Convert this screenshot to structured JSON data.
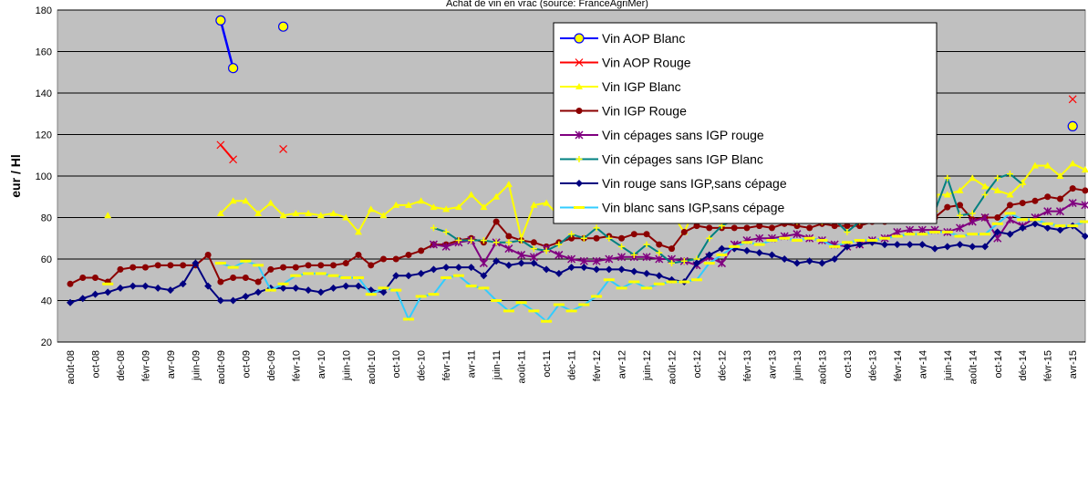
{
  "chart_data": {
    "type": "line",
    "title": "Achat de vin en vrac (source: FranceAgriMer)",
    "y_label": "eur / Hl",
    "categories": [
      "août-08",
      null,
      "oct-08",
      null,
      "déc-08",
      null,
      "févr-09",
      null,
      "avr-09",
      null,
      "juin-09",
      null,
      "août-09",
      null,
      "oct-09",
      null,
      "déc-09",
      null,
      "févr-10",
      null,
      "avr-10",
      null,
      "juin-10",
      null,
      "août-10",
      null,
      "oct-10",
      null,
      "déc-10",
      null,
      "févr-11",
      null,
      "avr-11",
      null,
      "juin-11",
      null,
      "août-11",
      null,
      "oct-11",
      null,
      "déc-11",
      null,
      "févr-12",
      null,
      "avr-12",
      null,
      "juin-12",
      null,
      "août-12",
      null,
      "oct-12",
      null,
      "déc-12",
      null,
      "févr-13",
      null,
      "avr-13",
      null,
      "juin-13",
      null,
      "août-13",
      null,
      "oct-13",
      null,
      "déc-13",
      null,
      "févr-14",
      null,
      "avr-14",
      null,
      "juin-14",
      null,
      "août-14",
      null,
      "oct-14",
      null,
      "déc-14",
      null,
      "févr-15",
      null,
      "avr-15",
      null
    ],
    "ylim": [
      20,
      180
    ],
    "yticks": [
      20,
      40,
      60,
      80,
      100,
      120,
      140,
      160,
      180
    ],
    "grid": true,
    "legend": "upper right",
    "series": [
      {
        "name": "Vin AOP Blanc",
        "color": "#0000ff",
        "marker": "circle",
        "marker_color": "#ffff00",
        "values": [
          null,
          null,
          null,
          null,
          null,
          null,
          null,
          null,
          null,
          null,
          null,
          null,
          175,
          152,
          null,
          null,
          null,
          172,
          null,
          null,
          null,
          null,
          null,
          null,
          null,
          null,
          null,
          null,
          null,
          null,
          null,
          null,
          null,
          null,
          null,
          null,
          null,
          null,
          null,
          null,
          null,
          null,
          null,
          null,
          null,
          null,
          null,
          null,
          null,
          null,
          null,
          null,
          null,
          null,
          null,
          null,
          null,
          null,
          null,
          null,
          null,
          null,
          null,
          null,
          null,
          null,
          null,
          null,
          null,
          null,
          null,
          null,
          null,
          null,
          null,
          null,
          null,
          null,
          null,
          null,
          124,
          null
        ]
      },
      {
        "name": "Vin AOP Rouge",
        "color": "#ff0000",
        "marker": "x",
        "marker_color": "#ff0000",
        "values": [
          null,
          null,
          null,
          null,
          null,
          null,
          null,
          null,
          null,
          null,
          null,
          null,
          115,
          108,
          null,
          null,
          null,
          113,
          null,
          null,
          null,
          null,
          null,
          null,
          null,
          null,
          null,
          null,
          null,
          null,
          null,
          null,
          null,
          null,
          null,
          null,
          null,
          null,
          null,
          null,
          null,
          null,
          null,
          null,
          null,
          null,
          null,
          null,
          null,
          null,
          null,
          null,
          null,
          null,
          null,
          null,
          null,
          null,
          null,
          null,
          null,
          null,
          null,
          null,
          null,
          null,
          null,
          null,
          null,
          null,
          null,
          null,
          null,
          null,
          null,
          null,
          null,
          null,
          null,
          null,
          137,
          null
        ]
      },
      {
        "name": "Vin IGP Blanc",
        "color": "#ffff00",
        "marker": "triangle",
        "marker_color": "#ffff00",
        "values": [
          null,
          null,
          null,
          81,
          null,
          null,
          null,
          null,
          null,
          null,
          null,
          null,
          82,
          88,
          88,
          82,
          87,
          81,
          82,
          82,
          81,
          82,
          80,
          73,
          84,
          81,
          86,
          86,
          88,
          85,
          84,
          85,
          91,
          85,
          90,
          96,
          70,
          86,
          87,
          81,
          79,
          82,
          82,
          80,
          80,
          84,
          81,
          80,
          82,
          73,
          86,
          84,
          86,
          86,
          85,
          88,
          87,
          86,
          89,
          88,
          90,
          88,
          87,
          87,
          87,
          88,
          92,
          91,
          93,
          91,
          91,
          93,
          99,
          95,
          93,
          91,
          97,
          105,
          105,
          100,
          106,
          103
        ]
      },
      {
        "name": "Vin IGP Rouge",
        "color": "#8b0000",
        "marker": "dot",
        "marker_color": "#8b0000",
        "values": [
          48,
          51,
          51,
          49,
          55,
          56,
          56,
          57,
          57,
          57,
          57,
          62,
          49,
          51,
          51,
          49,
          55,
          56,
          56,
          57,
          57,
          57,
          58,
          62,
          57,
          60,
          60,
          62,
          64,
          67,
          67,
          69,
          70,
          68,
          78,
          71,
          69,
          68,
          66,
          68,
          70,
          70,
          70,
          71,
          70,
          72,
          72,
          67,
          65,
          73,
          76,
          75,
          75,
          75,
          75,
          76,
          75,
          77,
          76,
          75,
          77,
          76,
          76,
          76,
          78,
          78,
          79,
          79,
          79,
          80,
          85,
          86,
          79,
          80,
          80,
          86,
          87,
          88,
          90,
          89,
          94,
          93
        ]
      },
      {
        "name": "Vin cépages sans IGP rouge",
        "color": "#800080",
        "marker": "star",
        "marker_color": "#800080",
        "values": [
          null,
          null,
          null,
          null,
          null,
          null,
          null,
          null,
          null,
          null,
          null,
          null,
          null,
          null,
          null,
          null,
          null,
          null,
          null,
          null,
          null,
          null,
          null,
          null,
          null,
          null,
          null,
          null,
          null,
          67,
          66,
          68,
          69,
          58,
          68,
          65,
          62,
          61,
          65,
          62,
          60,
          59,
          59,
          60,
          61,
          61,
          61,
          60,
          60,
          59,
          57,
          61,
          58,
          67,
          69,
          70,
          70,
          71,
          72,
          70,
          69,
          67,
          66,
          67,
          69,
          70,
          73,
          74,
          74,
          74,
          73,
          75,
          78,
          80,
          70,
          79,
          76,
          80,
          83,
          83,
          87,
          86
        ]
      },
      {
        "name": "Vin cépages sans IGP Blanc",
        "color": "#008080",
        "marker": "plus",
        "marker_color": "#ffff00",
        "values": [
          null,
          null,
          null,
          null,
          null,
          null,
          null,
          null,
          null,
          null,
          null,
          null,
          null,
          null,
          null,
          null,
          null,
          null,
          null,
          null,
          null,
          null,
          null,
          null,
          null,
          null,
          null,
          null,
          null,
          75,
          73,
          69,
          69,
          69,
          68,
          68,
          69,
          65,
          64,
          67,
          72,
          70,
          75,
          70,
          66,
          62,
          67,
          63,
          58,
          59,
          60,
          70,
          76,
          79,
          84,
          82,
          80,
          79,
          78,
          79,
          78,
          79,
          73,
          78,
          84,
          85,
          86,
          86,
          85,
          83,
          99,
          81,
          82,
          91,
          99,
          101,
          96,
          null,
          null,
          null,
          null,
          null
        ]
      },
      {
        "name": "Vin rouge sans IGP,sans cépage",
        "color": "#000080",
        "marker": "diamond",
        "marker_color": "#000080",
        "values": [
          39,
          41,
          43,
          44,
          46,
          47,
          47,
          46,
          45,
          48,
          58,
          47,
          40,
          40,
          42,
          44,
          46,
          46,
          46,
          45,
          44,
          46,
          47,
          47,
          45,
          44,
          52,
          52,
          53,
          55,
          56,
          56,
          56,
          52,
          59,
          57,
          58,
          58,
          55,
          53,
          56,
          56,
          55,
          55,
          55,
          54,
          53,
          52,
          50,
          49,
          58,
          62,
          65,
          65,
          64,
          63,
          62,
          60,
          58,
          59,
          58,
          60,
          66,
          67,
          68,
          67,
          67,
          67,
          67,
          65,
          66,
          67,
          66,
          66,
          73,
          72,
          75,
          77,
          75,
          74,
          76,
          71
        ]
      },
      {
        "name": "Vin blanc sans IGP,sans cépage",
        "color": "#33ccff",
        "marker": "dash",
        "marker_color": "#ffff00",
        "values": [
          null,
          null,
          null,
          48,
          null,
          null,
          null,
          null,
          null,
          null,
          null,
          null,
          58,
          56,
          59,
          57,
          45,
          48,
          52,
          53,
          53,
          52,
          51,
          51,
          43,
          46,
          45,
          31,
          42,
          43,
          51,
          52,
          47,
          46,
          40,
          35,
          39,
          35,
          30,
          38,
          35,
          38,
          42,
          50,
          46,
          49,
          46,
          48,
          49,
          49,
          50,
          58,
          62,
          66,
          68,
          67,
          69,
          70,
          69,
          70,
          69,
          66,
          68,
          69,
          69,
          70,
          71,
          72,
          72,
          73,
          73,
          71,
          72,
          72,
          77,
          82,
          79,
          79,
          77,
          76,
          76,
          78
        ]
      }
    ]
  }
}
